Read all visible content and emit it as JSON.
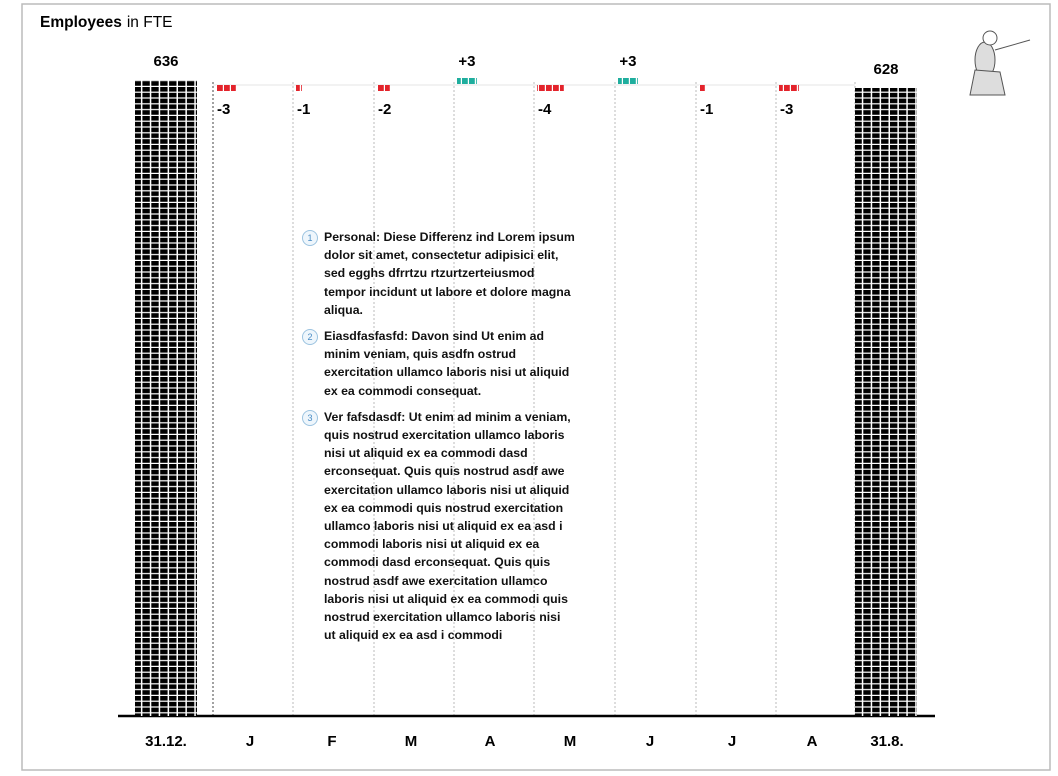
{
  "chart_data": {
    "type": "unit-waterfall",
    "title": "Employees",
    "subtitle": "in FTE",
    "categories": [
      "31.12.",
      "J",
      "F",
      "M",
      "A",
      "M",
      "J",
      "J",
      "A",
      "31.8."
    ],
    "values": [
      636,
      -3,
      -1,
      -2,
      3,
      -4,
      3,
      -1,
      -3,
      628
    ],
    "value_labels": [
      "636",
      "-3",
      "-1",
      "-2",
      "+3",
      "-4",
      "+3",
      "-1",
      "-3",
      "628"
    ],
    "colors": {
      "total": "#000000",
      "decrease": "#e3232b",
      "increase": "#1fae9e"
    },
    "notes": [
      {
        "number": "1",
        "text": "Personal: Diese Differenz ind  Lorem ipsum dolor sit amet, consectetur adipisici elit, sed egghs dfrrtzu rtzurtzerteiusmod tempor incidunt ut labore et dolore magna aliqua."
      },
      {
        "number": "2",
        "text": "Eiasdfasfasfd: Davon sind Ut enim ad minim veniam, quis asdfn ostrud exercitation ullamco laboris nisi ut aliquid ex ea commodi consequat."
      },
      {
        "number": "3",
        "text": "Ver fafsdasdf: Ut enim ad minim a veniam, quis nostrud exercitation ullamco laboris nisi ut aliquid ex ea commodi dasd erconsequat. Quis quis nostrud asdf awe exercitation ullamco laboris nisi ut aliquid ex ea commodi quis nostrud exercitation ullamco laboris nisi ut aliquid ex ea asd i commodi laboris nisi ut aliquid ex ea commodi dasd erconsequat. Quis quis nostrud asdf awe exercitation ullamco laboris nisi ut aliquid ex ea commodi quis nostrud exercitation ullamco laboris nisi ut aliquid ex ea asd i commodi"
      }
    ]
  }
}
